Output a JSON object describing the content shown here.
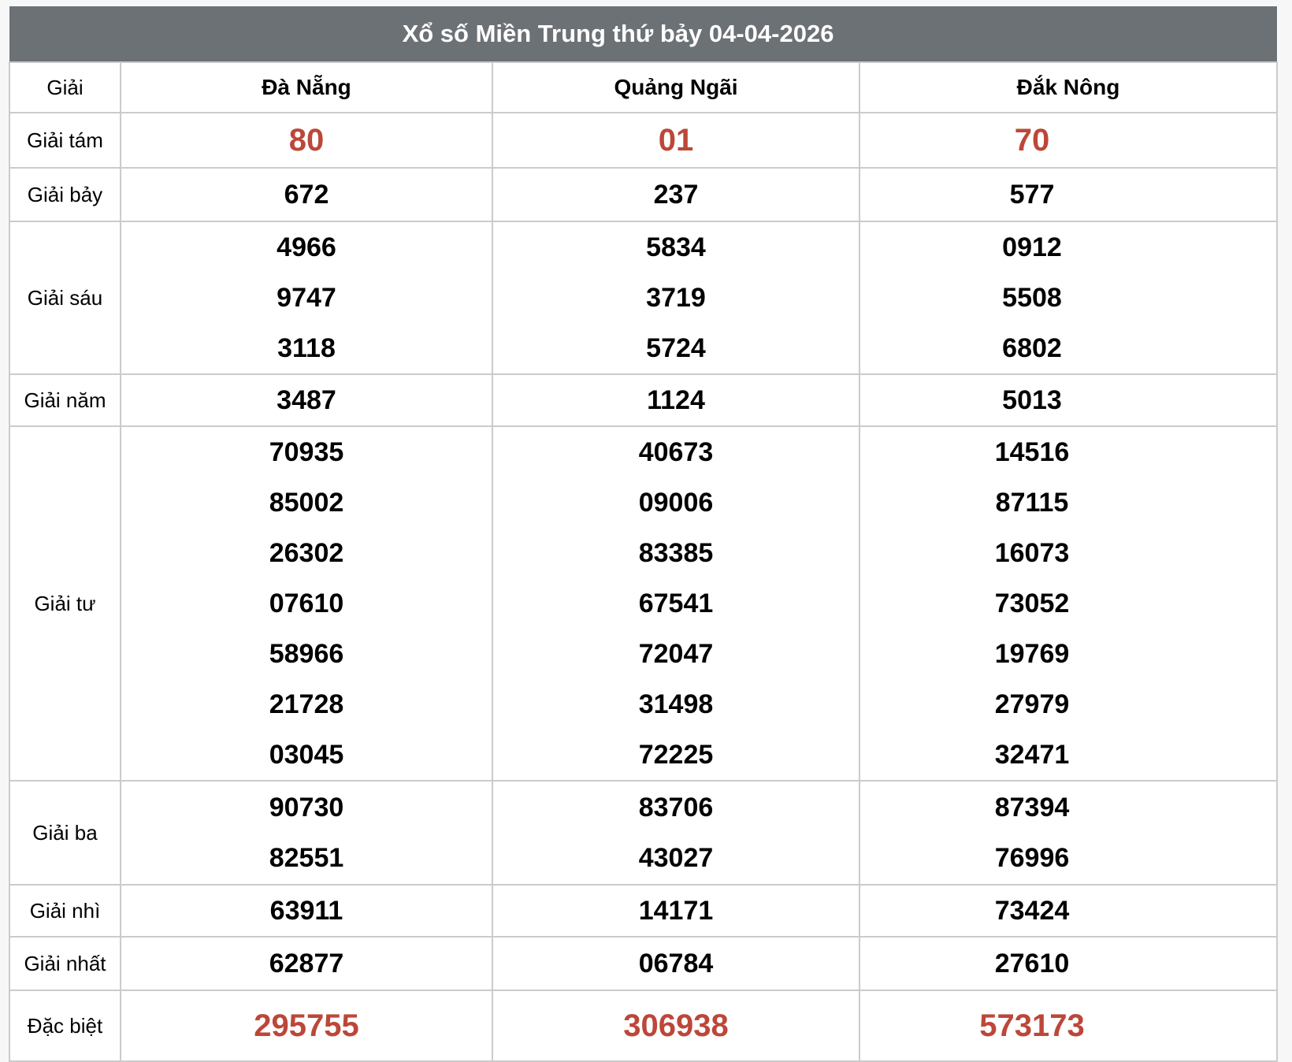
{
  "title": "Xổ số Miền Trung thứ bảy 04-04-2026",
  "columns": {
    "prize_header": "Giải",
    "provinces": [
      "Đà Nẵng",
      "Quảng Ngãi",
      "Đắk Nông"
    ]
  },
  "colors": {
    "title_bar_bg": "#6c7176",
    "title_text": "#ffffff",
    "special_number": "#bc4739",
    "regular_number": "#000000",
    "grid_border": "#cbcbcb"
  },
  "rows": [
    {
      "label": "Giải tám",
      "special": true,
      "values": [
        [
          "80"
        ],
        [
          "01"
        ],
        [
          "70"
        ]
      ]
    },
    {
      "label": "Giải bảy",
      "special": false,
      "values": [
        [
          "672"
        ],
        [
          "237"
        ],
        [
          "577"
        ]
      ]
    },
    {
      "label": "Giải sáu",
      "special": false,
      "values": [
        [
          "4966",
          "9747",
          "3118"
        ],
        [
          "5834",
          "3719",
          "5724"
        ],
        [
          "0912",
          "5508",
          "6802"
        ]
      ]
    },
    {
      "label": "Giải năm",
      "special": false,
      "values": [
        [
          "3487"
        ],
        [
          "1124"
        ],
        [
          "5013"
        ]
      ]
    },
    {
      "label": "Giải tư",
      "special": false,
      "values": [
        [
          "70935",
          "85002",
          "26302",
          "07610",
          "58966",
          "21728",
          "03045"
        ],
        [
          "40673",
          "09006",
          "83385",
          "67541",
          "72047",
          "31498",
          "72225"
        ],
        [
          "14516",
          "87115",
          "16073",
          "73052",
          "19769",
          "27979",
          "32471"
        ]
      ]
    },
    {
      "label": "Giải ba",
      "special": false,
      "values": [
        [
          "90730",
          "82551"
        ],
        [
          "83706",
          "43027"
        ],
        [
          "87394",
          "76996"
        ]
      ]
    },
    {
      "label": "Giải nhì",
      "special": false,
      "values": [
        [
          "63911"
        ],
        [
          "14171"
        ],
        [
          "73424"
        ]
      ]
    },
    {
      "label": "Giải nhất",
      "special": false,
      "values": [
        [
          "62877"
        ],
        [
          "06784"
        ],
        [
          "27610"
        ]
      ]
    },
    {
      "label": "Đặc biệt",
      "special": true,
      "values": [
        [
          "295755"
        ],
        [
          "306938"
        ],
        [
          "573173"
        ]
      ]
    }
  ]
}
